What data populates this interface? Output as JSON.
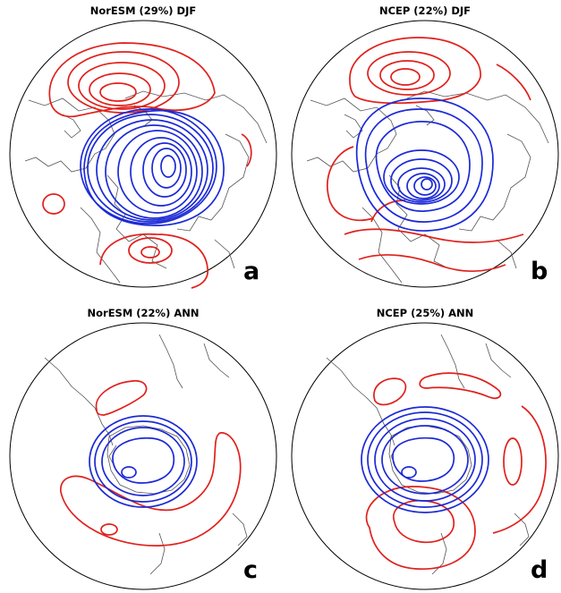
{
  "panels": [
    {
      "id": "a",
      "title": "NorESM (29%) DJF",
      "letter": "a",
      "hemisphere": "north",
      "season": "DJF",
      "model": "NorESM",
      "variance_percent": 29
    },
    {
      "id": "b",
      "title": "NCEP (22%) DJF",
      "letter": "b",
      "hemisphere": "north",
      "season": "DJF",
      "model": "NCEP",
      "variance_percent": 22
    },
    {
      "id": "c",
      "title": "NorESM (22%) ANN",
      "letter": "c",
      "hemisphere": "south",
      "season": "ANN",
      "model": "NorESM",
      "variance_percent": 22
    },
    {
      "id": "d",
      "title": "NCEP (25%) ANN",
      "letter": "d",
      "hemisphere": "south",
      "season": "ANN",
      "model": "NCEP",
      "variance_percent": 25
    }
  ],
  "colors": {
    "positive_contours": "#e0201c",
    "negative_contours": "#1c2ad6",
    "coastlines": "#555555"
  }
}
